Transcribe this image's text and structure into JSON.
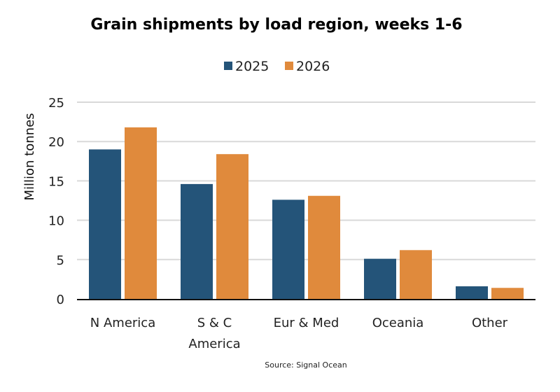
{
  "chart_data": {
    "type": "bar",
    "title": "Grain shipments by load region, weeks 1-6",
    "xlabel": "",
    "ylabel": "Million tonnes",
    "ylim": [
      0,
      25
    ],
    "yticks": [
      0,
      5,
      10,
      15,
      20,
      25
    ],
    "grid": true,
    "legend_position": "top-center",
    "categories": [
      "N America",
      "S & C America",
      "Eur & Med",
      "Oceania",
      "Other"
    ],
    "category_lines": [
      [
        "N America"
      ],
      [
        "S & C",
        "America"
      ],
      [
        "Eur & Med"
      ],
      [
        "Oceania"
      ],
      [
        "Other"
      ]
    ],
    "series": [
      {
        "name": "2025",
        "color": "#245479",
        "values": [
          19.0,
          14.6,
          12.6,
          5.1,
          1.6
        ]
      },
      {
        "name": "2026",
        "color": "#E08A3C",
        "values": [
          21.8,
          18.4,
          13.1,
          6.2,
          1.4
        ]
      }
    ],
    "source": "Source: Signal Ocean"
  }
}
